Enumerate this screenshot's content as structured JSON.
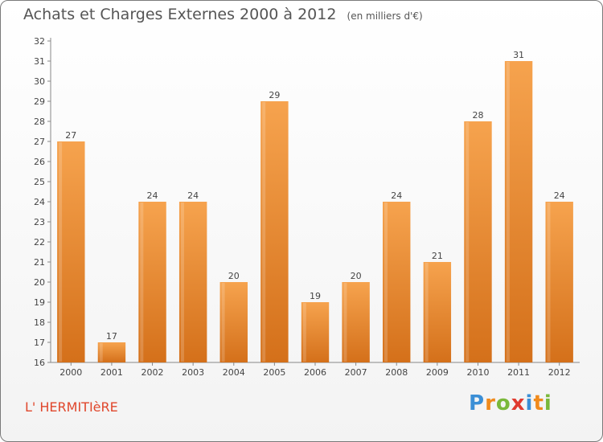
{
  "header": {
    "title": "Achats et Charges Externes 2000 à 2012",
    "unit": "(en milliers d'€)"
  },
  "commune": "L' HERMITIèRE",
  "logo": {
    "letters": [
      "P",
      "r",
      "o",
      "x",
      "i",
      "t",
      "i"
    ],
    "colors": [
      "#3b8fd6",
      "#f08a1c",
      "#7ab83a",
      "#e03a2f",
      "#3b8fd6",
      "#f08a1c",
      "#7ab83a"
    ]
  },
  "colors": {
    "bar_top": "#f6a34e",
    "bar_bottom": "#d4701a"
  },
  "chart_data": {
    "type": "bar",
    "title": "Achats et Charges Externes 2000 à 2012",
    "subtitle": "(en milliers d'€)",
    "categories": [
      "2000",
      "2001",
      "2002",
      "2003",
      "2004",
      "2005",
      "2006",
      "2007",
      "2008",
      "2009",
      "2010",
      "2011",
      "2012"
    ],
    "values": [
      27,
      17,
      24,
      24,
      20,
      29,
      19,
      20,
      24,
      21,
      28,
      31,
      24
    ],
    "data_labels": [
      "27",
      "17",
      "24",
      "24",
      "20",
      "29",
      "19",
      "20",
      "24",
      "21",
      "28",
      "31",
      "24"
    ],
    "y_ticks": [
      "16",
      "17",
      "18",
      "19",
      "20",
      "21",
      "22",
      "23",
      "24",
      "25",
      "26",
      "27",
      "28",
      "29",
      "30",
      "31",
      "32"
    ],
    "ylim": [
      16,
      32
    ],
    "grid": false
  }
}
